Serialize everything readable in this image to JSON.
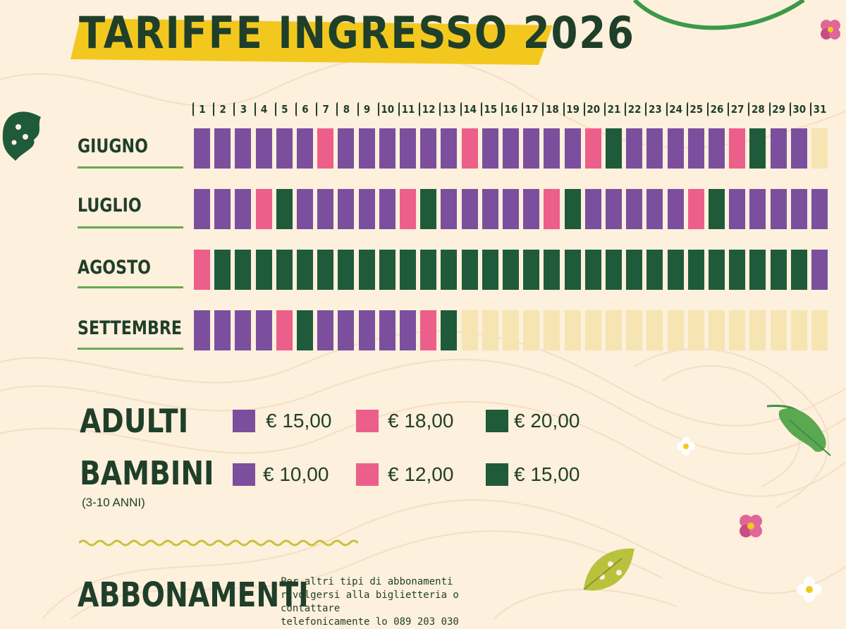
{
  "title": "TARIFFE INGRESSO 2026",
  "days": [
    "1",
    "2",
    "3",
    "4",
    "5",
    "6",
    "7",
    "8",
    "9",
    "10",
    "11",
    "12",
    "13",
    "14",
    "15",
    "16",
    "17",
    "18",
    "19",
    "20",
    "21",
    "22",
    "23",
    "24",
    "25",
    "26",
    "27",
    "28",
    "29",
    "30",
    "31"
  ],
  "months": [
    {
      "name": "GIUGNO",
      "cells": [
        "p",
        "p",
        "p",
        "p",
        "p",
        "p",
        "k",
        "p",
        "p",
        "p",
        "p",
        "p",
        "p",
        "k",
        "p",
        "p",
        "p",
        "p",
        "p",
        "k",
        "g",
        "p",
        "p",
        "p",
        "p",
        "p",
        "k",
        "g",
        "p",
        "p",
        "e"
      ]
    },
    {
      "name": "LUGLIO",
      "cells": [
        "p",
        "p",
        "p",
        "k",
        "g",
        "p",
        "p",
        "p",
        "p",
        "p",
        "k",
        "g",
        "p",
        "p",
        "p",
        "p",
        "p",
        "k",
        "g",
        "p",
        "p",
        "p",
        "p",
        "p",
        "k",
        "g",
        "p",
        "p",
        "p",
        "p",
        "p"
      ]
    },
    {
      "name": "AGOSTO",
      "cells": [
        "k",
        "g",
        "g",
        "g",
        "g",
        "g",
        "g",
        "g",
        "g",
        "g",
        "g",
        "g",
        "g",
        "g",
        "g",
        "g",
        "g",
        "g",
        "g",
        "g",
        "g",
        "g",
        "g",
        "g",
        "g",
        "g",
        "g",
        "g",
        "g",
        "g",
        "p"
      ]
    },
    {
      "name": "SETTEMBRE",
      "cells": [
        "p",
        "p",
        "p",
        "p",
        "k",
        "g",
        "p",
        "p",
        "p",
        "p",
        "p",
        "k",
        "g",
        "e",
        "e",
        "e",
        "e",
        "e",
        "e",
        "e",
        "e",
        "e",
        "e",
        "e",
        "e",
        "e",
        "e",
        "e",
        "e",
        "e",
        "e"
      ]
    }
  ],
  "colors": {
    "p": "#7b4f9e",
    "k": "#ec5f8a",
    "g": "#1f5b3a",
    "e": "#f6e4b3",
    "title_band": "#f3c81e",
    "accent_line": "#6aa84f"
  },
  "legend": {
    "adulti_label": "ADULTI",
    "adulti_prices": [
      "€ 15,00",
      "€ 18,00",
      "€ 20,00"
    ],
    "bambini_label": "BAMBINI",
    "bambini_sub": "(3-10 ANNI)",
    "bambini_prices": [
      "€ 10,00",
      "€ 12,00",
      "€ 15,00"
    ]
  },
  "abbonamenti": {
    "title": "ABBONAMENTI",
    "text_lines": [
      "Per altri tipi di abbonamenti",
      "rivolgersi alla biglietteria o contattare",
      "telefonicamente lo 089 203 030"
    ]
  },
  "icons": [
    "leaf-icon",
    "flower-icon"
  ]
}
